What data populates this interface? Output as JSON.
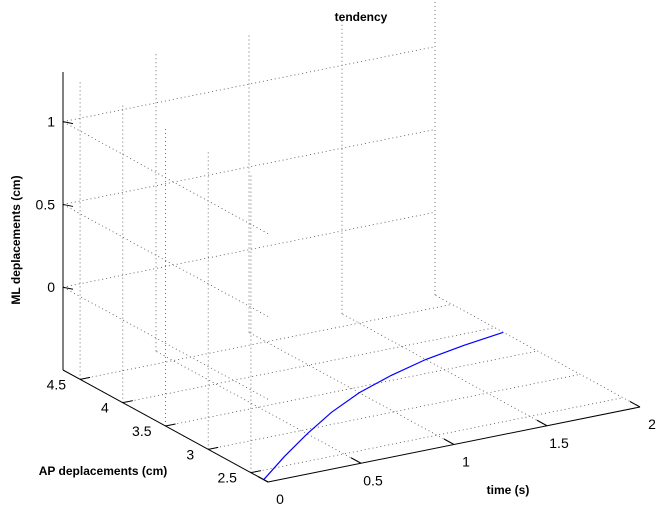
{
  "chart_data": {
    "type": "line",
    "title": "tendency",
    "xlabel": "time (s)",
    "ylabel": "AP deplacements (cm)",
    "zlabel": "ML deplacements (cm)",
    "xlim": [
      0,
      2
    ],
    "ylim": [
      2.3,
      4.7
    ],
    "zlim": [
      -0.5,
      1.3
    ],
    "xticks": [
      0,
      0.5,
      1,
      1.5,
      2
    ],
    "xtick_labels": [
      "0",
      "0.5",
      "1",
      "1.5",
      "2"
    ],
    "yticks": [
      2.5,
      3,
      3.5,
      4,
      4.5
    ],
    "ytick_labels": [
      "2.5",
      "3",
      "3.5",
      "4",
      "4.5"
    ],
    "zticks": [
      0,
      0.5,
      1
    ],
    "ztick_labels": [
      "0",
      "0.5",
      "1"
    ],
    "grid": true,
    "line_color": "#0000ff",
    "series": [
      {
        "x": [
          0.0,
          0.25,
          0.5,
          0.75,
          1.0,
          1.25,
          1.5,
          1.75,
          2.0
        ],
        "y": [
          2.35,
          2.65,
          2.93,
          3.19,
          3.41,
          3.58,
          3.72,
          3.82,
          3.9
        ],
        "z": [
          -0.5,
          -0.5,
          -0.5,
          -0.5,
          -0.5,
          -0.5,
          -0.5,
          -0.5,
          -0.5
        ]
      }
    ]
  }
}
